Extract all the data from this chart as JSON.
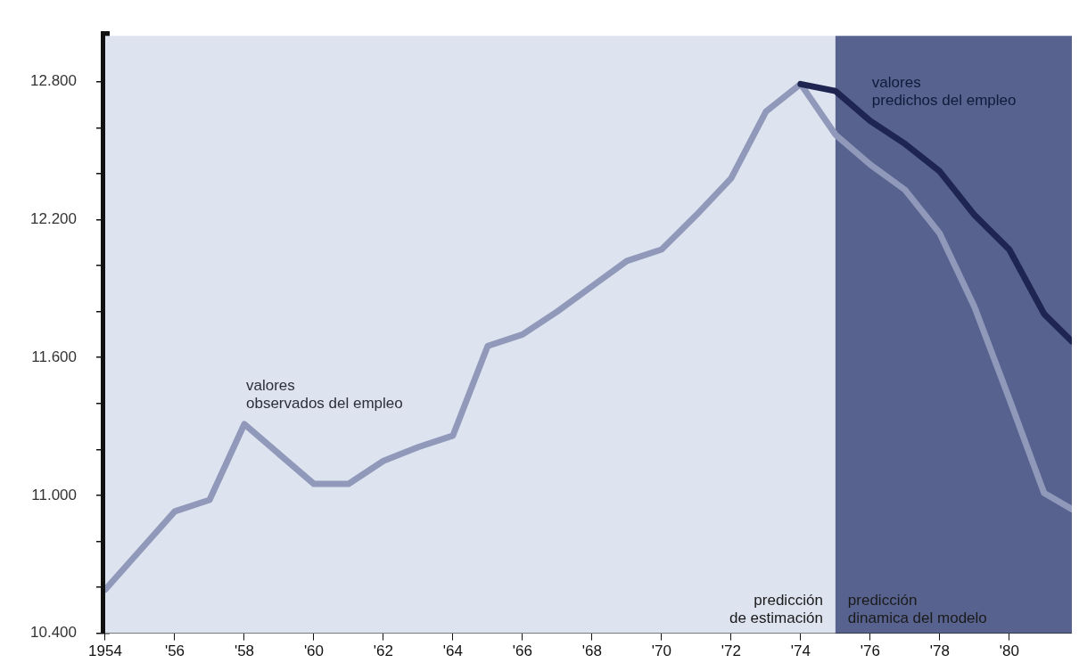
{
  "chart_data": {
    "type": "line",
    "xlim": [
      1954,
      1981.8
    ],
    "ylim": [
      10400,
      13000
    ],
    "xticks": [
      {
        "value": 1954,
        "label": "1954"
      },
      {
        "value": 1956,
        "label": "'56"
      },
      {
        "value": 1958,
        "label": "'58"
      },
      {
        "value": 1960,
        "label": "'60"
      },
      {
        "value": 1962,
        "label": "'62"
      },
      {
        "value": 1964,
        "label": "'64"
      },
      {
        "value": 1966,
        "label": "'66"
      },
      {
        "value": 1968,
        "label": "'68"
      },
      {
        "value": 1970,
        "label": "'70"
      },
      {
        "value": 1972,
        "label": "'72"
      },
      {
        "value": 1974,
        "label": "'74"
      },
      {
        "value": 1976,
        "label": "'76"
      },
      {
        "value": 1978,
        "label": "'78"
      },
      {
        "value": 1980,
        "label": "'80"
      }
    ],
    "yticks": [
      {
        "value": 10400,
        "label": "10.400"
      },
      {
        "value": 10600,
        "label": null
      },
      {
        "value": 10800,
        "label": null
      },
      {
        "value": 11000,
        "label": "11.000"
      },
      {
        "value": 11200,
        "label": null
      },
      {
        "value": 11400,
        "label": null
      },
      {
        "value": 11600,
        "label": "11.600"
      },
      {
        "value": 11800,
        "label": null
      },
      {
        "value": 12000,
        "label": null
      },
      {
        "value": 12200,
        "label": "12.200"
      },
      {
        "value": 12400,
        "label": null
      },
      {
        "value": 12600,
        "label": null
      },
      {
        "value": 12800,
        "label": "12.800"
      }
    ],
    "series": [
      {
        "color": "#1d2550",
        "x": [
          1974,
          1975,
          1976,
          1977,
          1978,
          1979,
          1980,
          1981,
          1981.8
        ],
        "values": [
          12790,
          12760,
          12630,
          12530,
          12410,
          12220,
          12070,
          11790,
          11670
        ]
      },
      {
        "color": "#9099b9",
        "x": [
          1954,
          1955,
          1956,
          1957,
          1958,
          1959,
          1960,
          1961,
          1962,
          1963,
          1964,
          1965,
          1966,
          1967,
          1968,
          1969,
          1970,
          1971,
          1972,
          1973,
          1974,
          1975,
          1976,
          1977,
          1978,
          1979,
          1980,
          1981,
          1981.8
        ],
        "values": [
          10590,
          10760,
          10930,
          10980,
          11310,
          11180,
          11050,
          11050,
          11150,
          11210,
          11260,
          11650,
          11700,
          11800,
          11910,
          12020,
          12070,
          12220,
          12380,
          12670,
          12790,
          12570,
          12440,
          12330,
          12140,
          11820,
          11420,
          11010,
          10940
        ]
      }
    ],
    "bands": [
      {
        "axis": "x",
        "from": 1954,
        "to": 1975,
        "label": "predicción\nde estimación",
        "color": "#dde3ef"
      },
      {
        "axis": "x",
        "from": 1975,
        "to": 1981.8,
        "label": "predicción\ndinamica del modelo",
        "color": "#57628f"
      }
    ],
    "annotations": [
      {
        "text": "valores\nobservados del empleo",
        "x": 1958,
        "y": 11310
      },
      {
        "text": "valores\npredichos del empleo",
        "x": 1976,
        "y": 12630
      }
    ],
    "grid": false,
    "legend": false,
    "marker": "none",
    "line_style": "solid"
  }
}
